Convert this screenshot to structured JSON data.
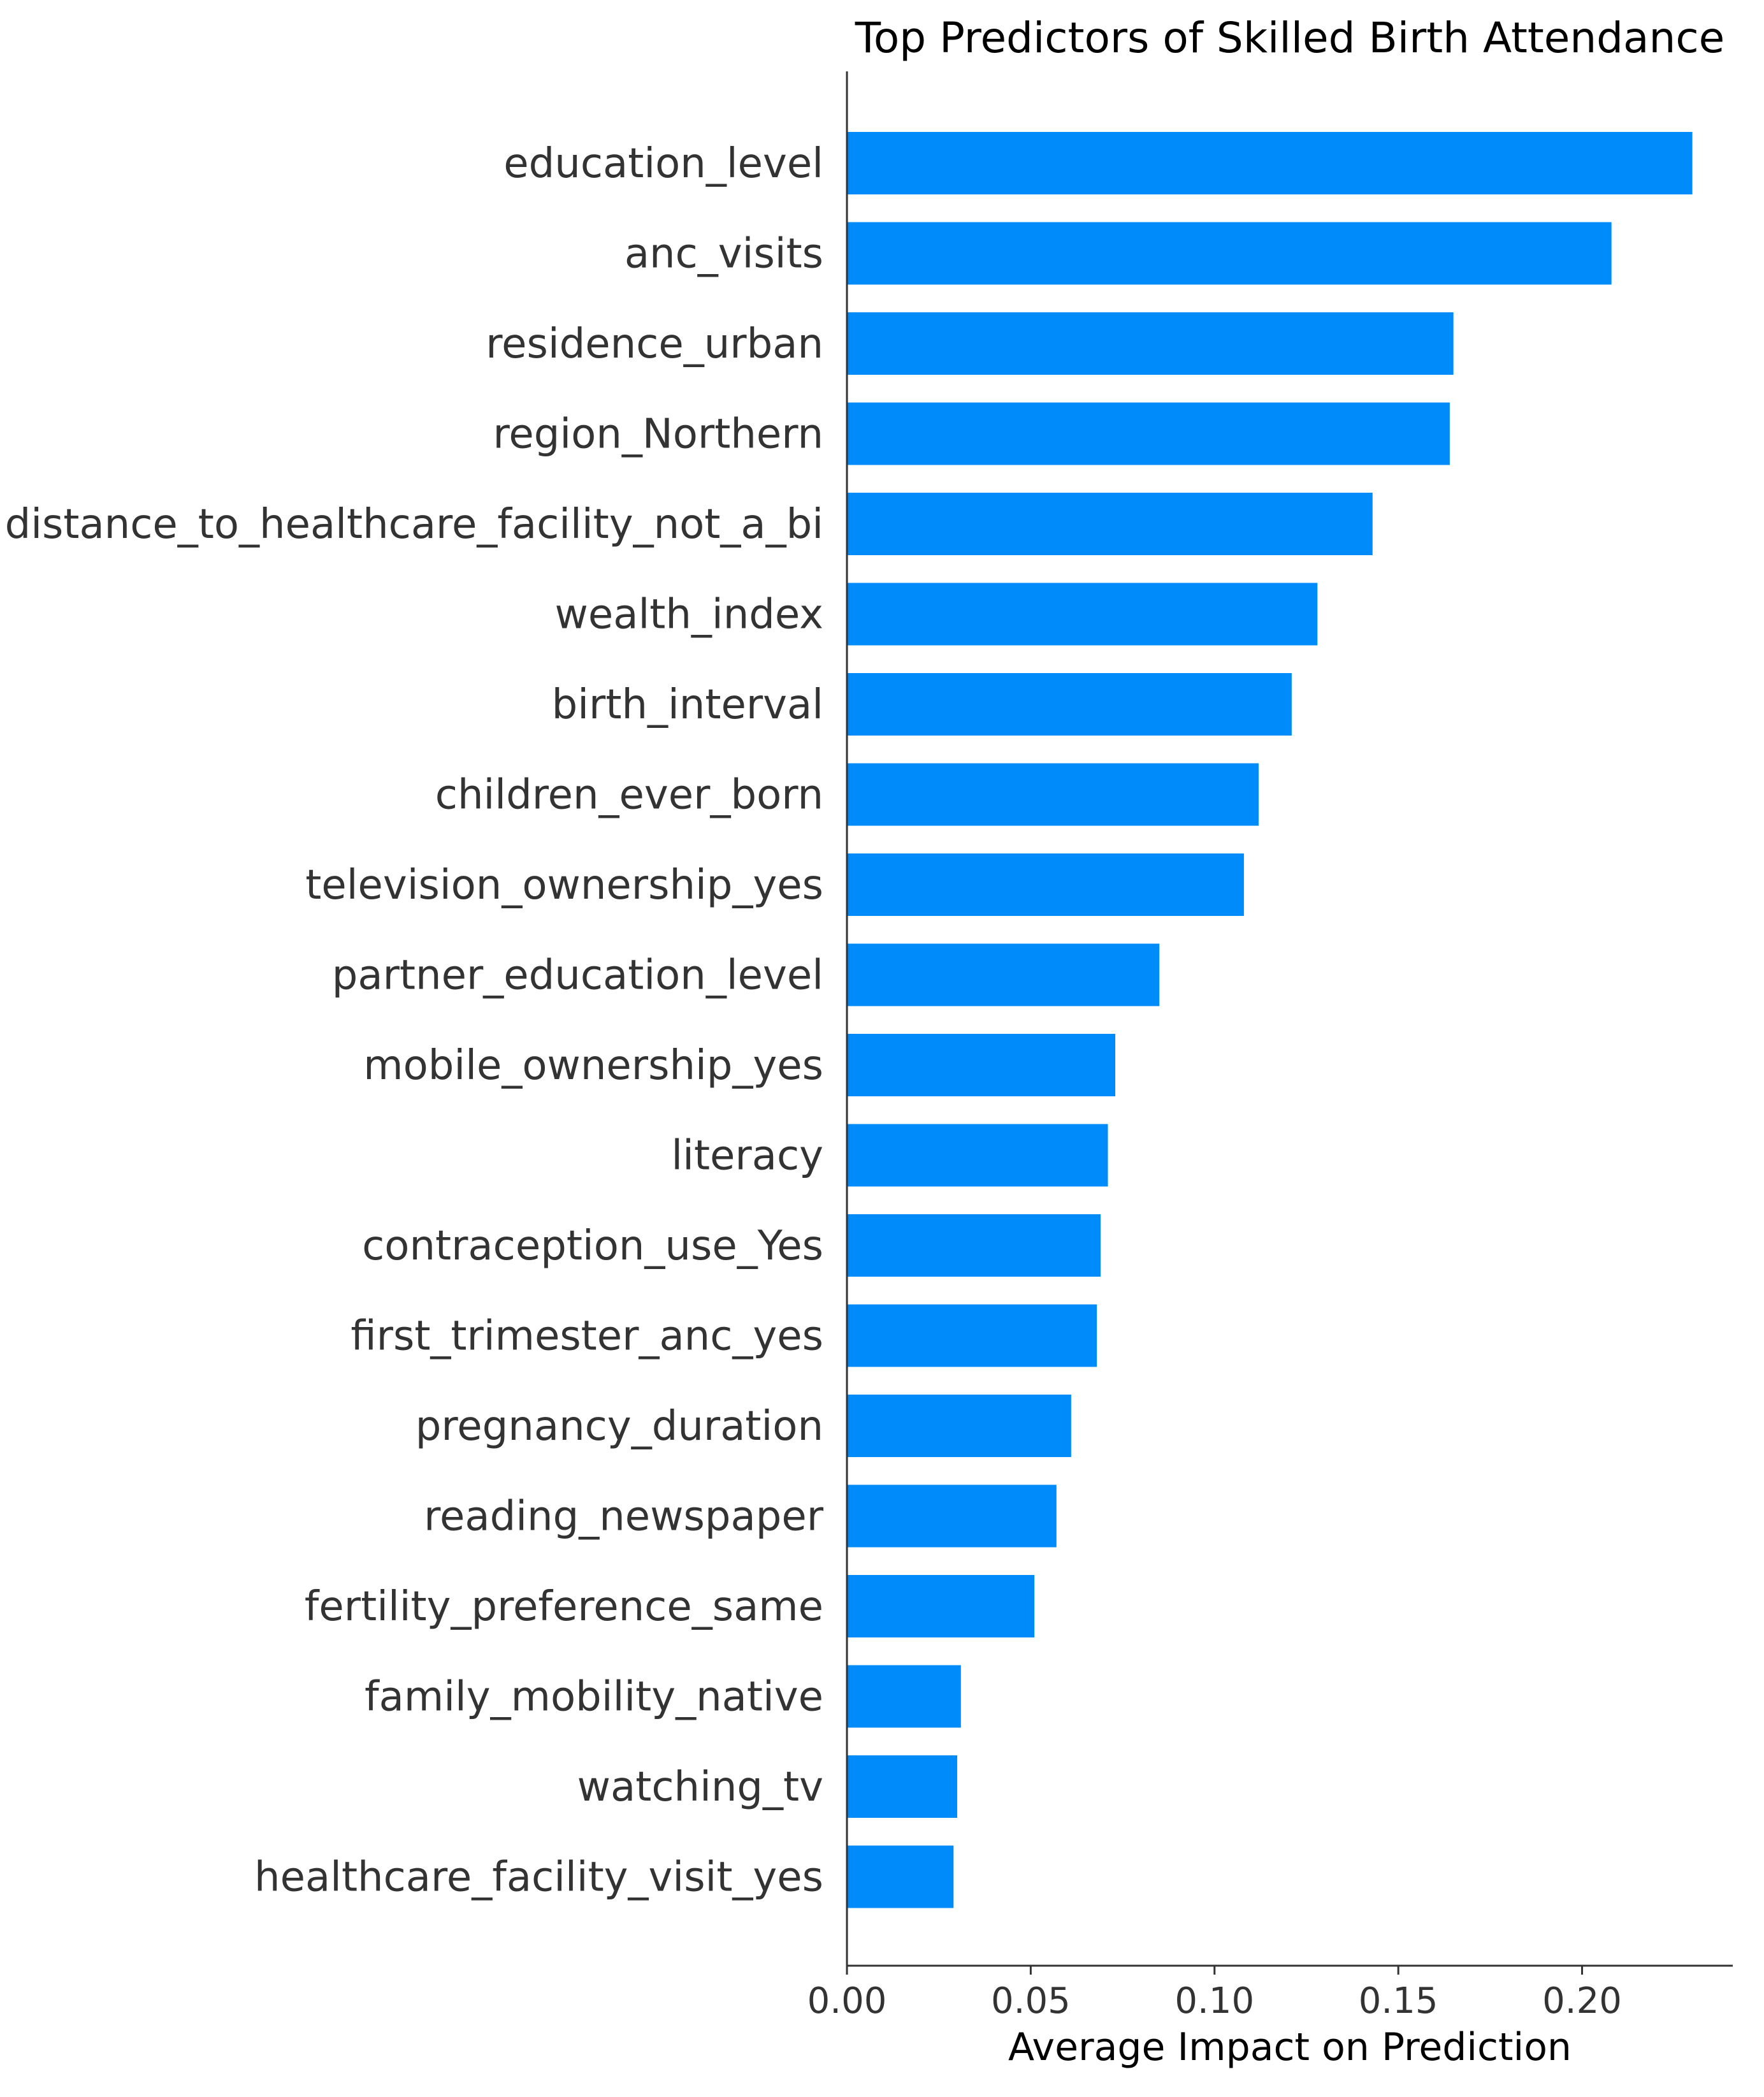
{
  "chart_data": {
    "type": "bar",
    "orientation": "horizontal",
    "title": "Top Predictors of Skilled Birth Attendance",
    "xlabel": "Average Impact on Prediction",
    "ylabel": "",
    "xlim": [
      0,
      0.241
    ],
    "xticks": [
      "0.00",
      "0.05",
      "0.10",
      "0.15",
      "0.20"
    ],
    "grid": false,
    "bar_color": "#008bfb",
    "categories": [
      "education_level",
      "anc_visits",
      "residence_urban",
      "region_Northern",
      "distance_to_healthcare_facility_not_a_bi",
      "wealth_index",
      "birth_interval",
      "children_ever_born",
      "television_ownership_yes",
      "partner_education_level",
      "mobile_ownership_yes",
      "literacy",
      "contraception_use_Yes",
      "first_trimester_anc_yes",
      "pregnancy_duration",
      "reading_newspaper",
      "fertility_preference_same",
      "family_mobility_native",
      "watching_tv",
      "healthcare_facility_visit_yes"
    ],
    "values": [
      0.23,
      0.208,
      0.165,
      0.164,
      0.143,
      0.128,
      0.121,
      0.112,
      0.108,
      0.085,
      0.073,
      0.071,
      0.069,
      0.068,
      0.061,
      0.057,
      0.051,
      0.031,
      0.03,
      0.029
    ]
  }
}
